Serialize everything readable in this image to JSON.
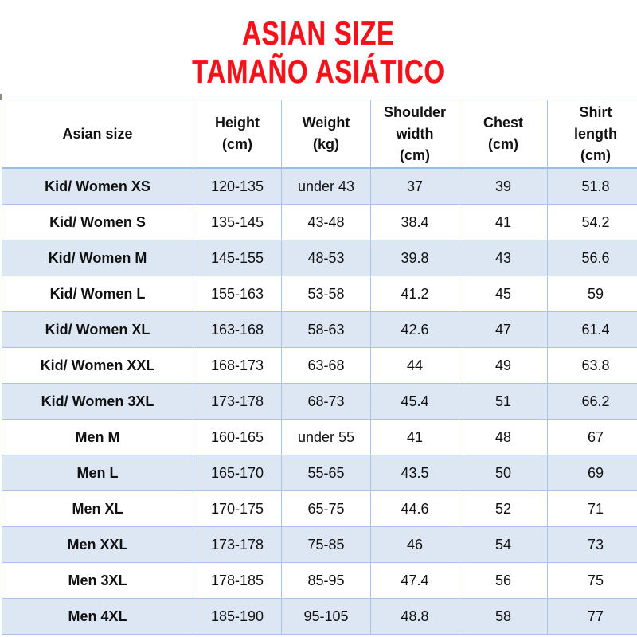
{
  "title": {
    "line1": "ASIAN SIZE",
    "line2": "TAMAÑO ASIÁTICO",
    "color": "#f2111a"
  },
  "table": {
    "headers": [
      [
        "Asian size"
      ],
      [
        "Height",
        "(cm)"
      ],
      [
        "Weight",
        "(kg)"
      ],
      [
        "Shoulder",
        "width",
        "(cm)"
      ],
      [
        "Chest",
        "(cm)"
      ],
      [
        "Shirt",
        "length",
        "(cm)"
      ]
    ],
    "rows": [
      {
        "size": "Kid/ Women XS",
        "height": "120-135",
        "weight": "under 43",
        "shoulder": "37",
        "chest": "39",
        "length": "51.8"
      },
      {
        "size": "Kid/ Women S",
        "height": "135-145",
        "weight": "43-48",
        "shoulder": "38.4",
        "chest": "41",
        "length": "54.2"
      },
      {
        "size": "Kid/ Women M",
        "height": "145-155",
        "weight": "48-53",
        "shoulder": "39.8",
        "chest": "43",
        "length": "56.6"
      },
      {
        "size": "Kid/ Women L",
        "height": "155-163",
        "weight": "53-58",
        "shoulder": "41.2",
        "chest": "45",
        "length": "59"
      },
      {
        "size": "Kid/ Women XL",
        "height": "163-168",
        "weight": "58-63",
        "shoulder": "42.6",
        "chest": "47",
        "length": "61.4"
      },
      {
        "size": "Kid/ Women XXL",
        "height": "168-173",
        "weight": "63-68",
        "shoulder": "44",
        "chest": "49",
        "length": "63.8"
      },
      {
        "size": "Kid/ Women 3XL",
        "height": "173-178",
        "weight": "68-73",
        "shoulder": "45.4",
        "chest": "51",
        "length": "66.2"
      },
      {
        "size": "Men M",
        "height": "160-165",
        "weight": "under 55",
        "shoulder": "41",
        "chest": "48",
        "length": "67"
      },
      {
        "size": "Men L",
        "height": "165-170",
        "weight": "55-65",
        "shoulder": "43.5",
        "chest": "50",
        "length": "69"
      },
      {
        "size": "Men XL",
        "height": "170-175",
        "weight": "65-75",
        "shoulder": "44.6",
        "chest": "52",
        "length": "71"
      },
      {
        "size": "Men XXL",
        "height": "173-178",
        "weight": "75-85",
        "shoulder": "46",
        "chest": "54",
        "length": "73"
      },
      {
        "size": "Men 3XL",
        "height": "178-185",
        "weight": "85-95",
        "shoulder": "47.4",
        "chest": "56",
        "length": "75"
      },
      {
        "size": "Men 4XL",
        "height": "185-190",
        "weight": "95-105",
        "shoulder": "48.8",
        "chest": "58",
        "length": "77"
      }
    ],
    "colors": {
      "border": "#a9c4e6",
      "shaded_row": "#dde7f3",
      "plain_row": "#ffffff"
    }
  }
}
